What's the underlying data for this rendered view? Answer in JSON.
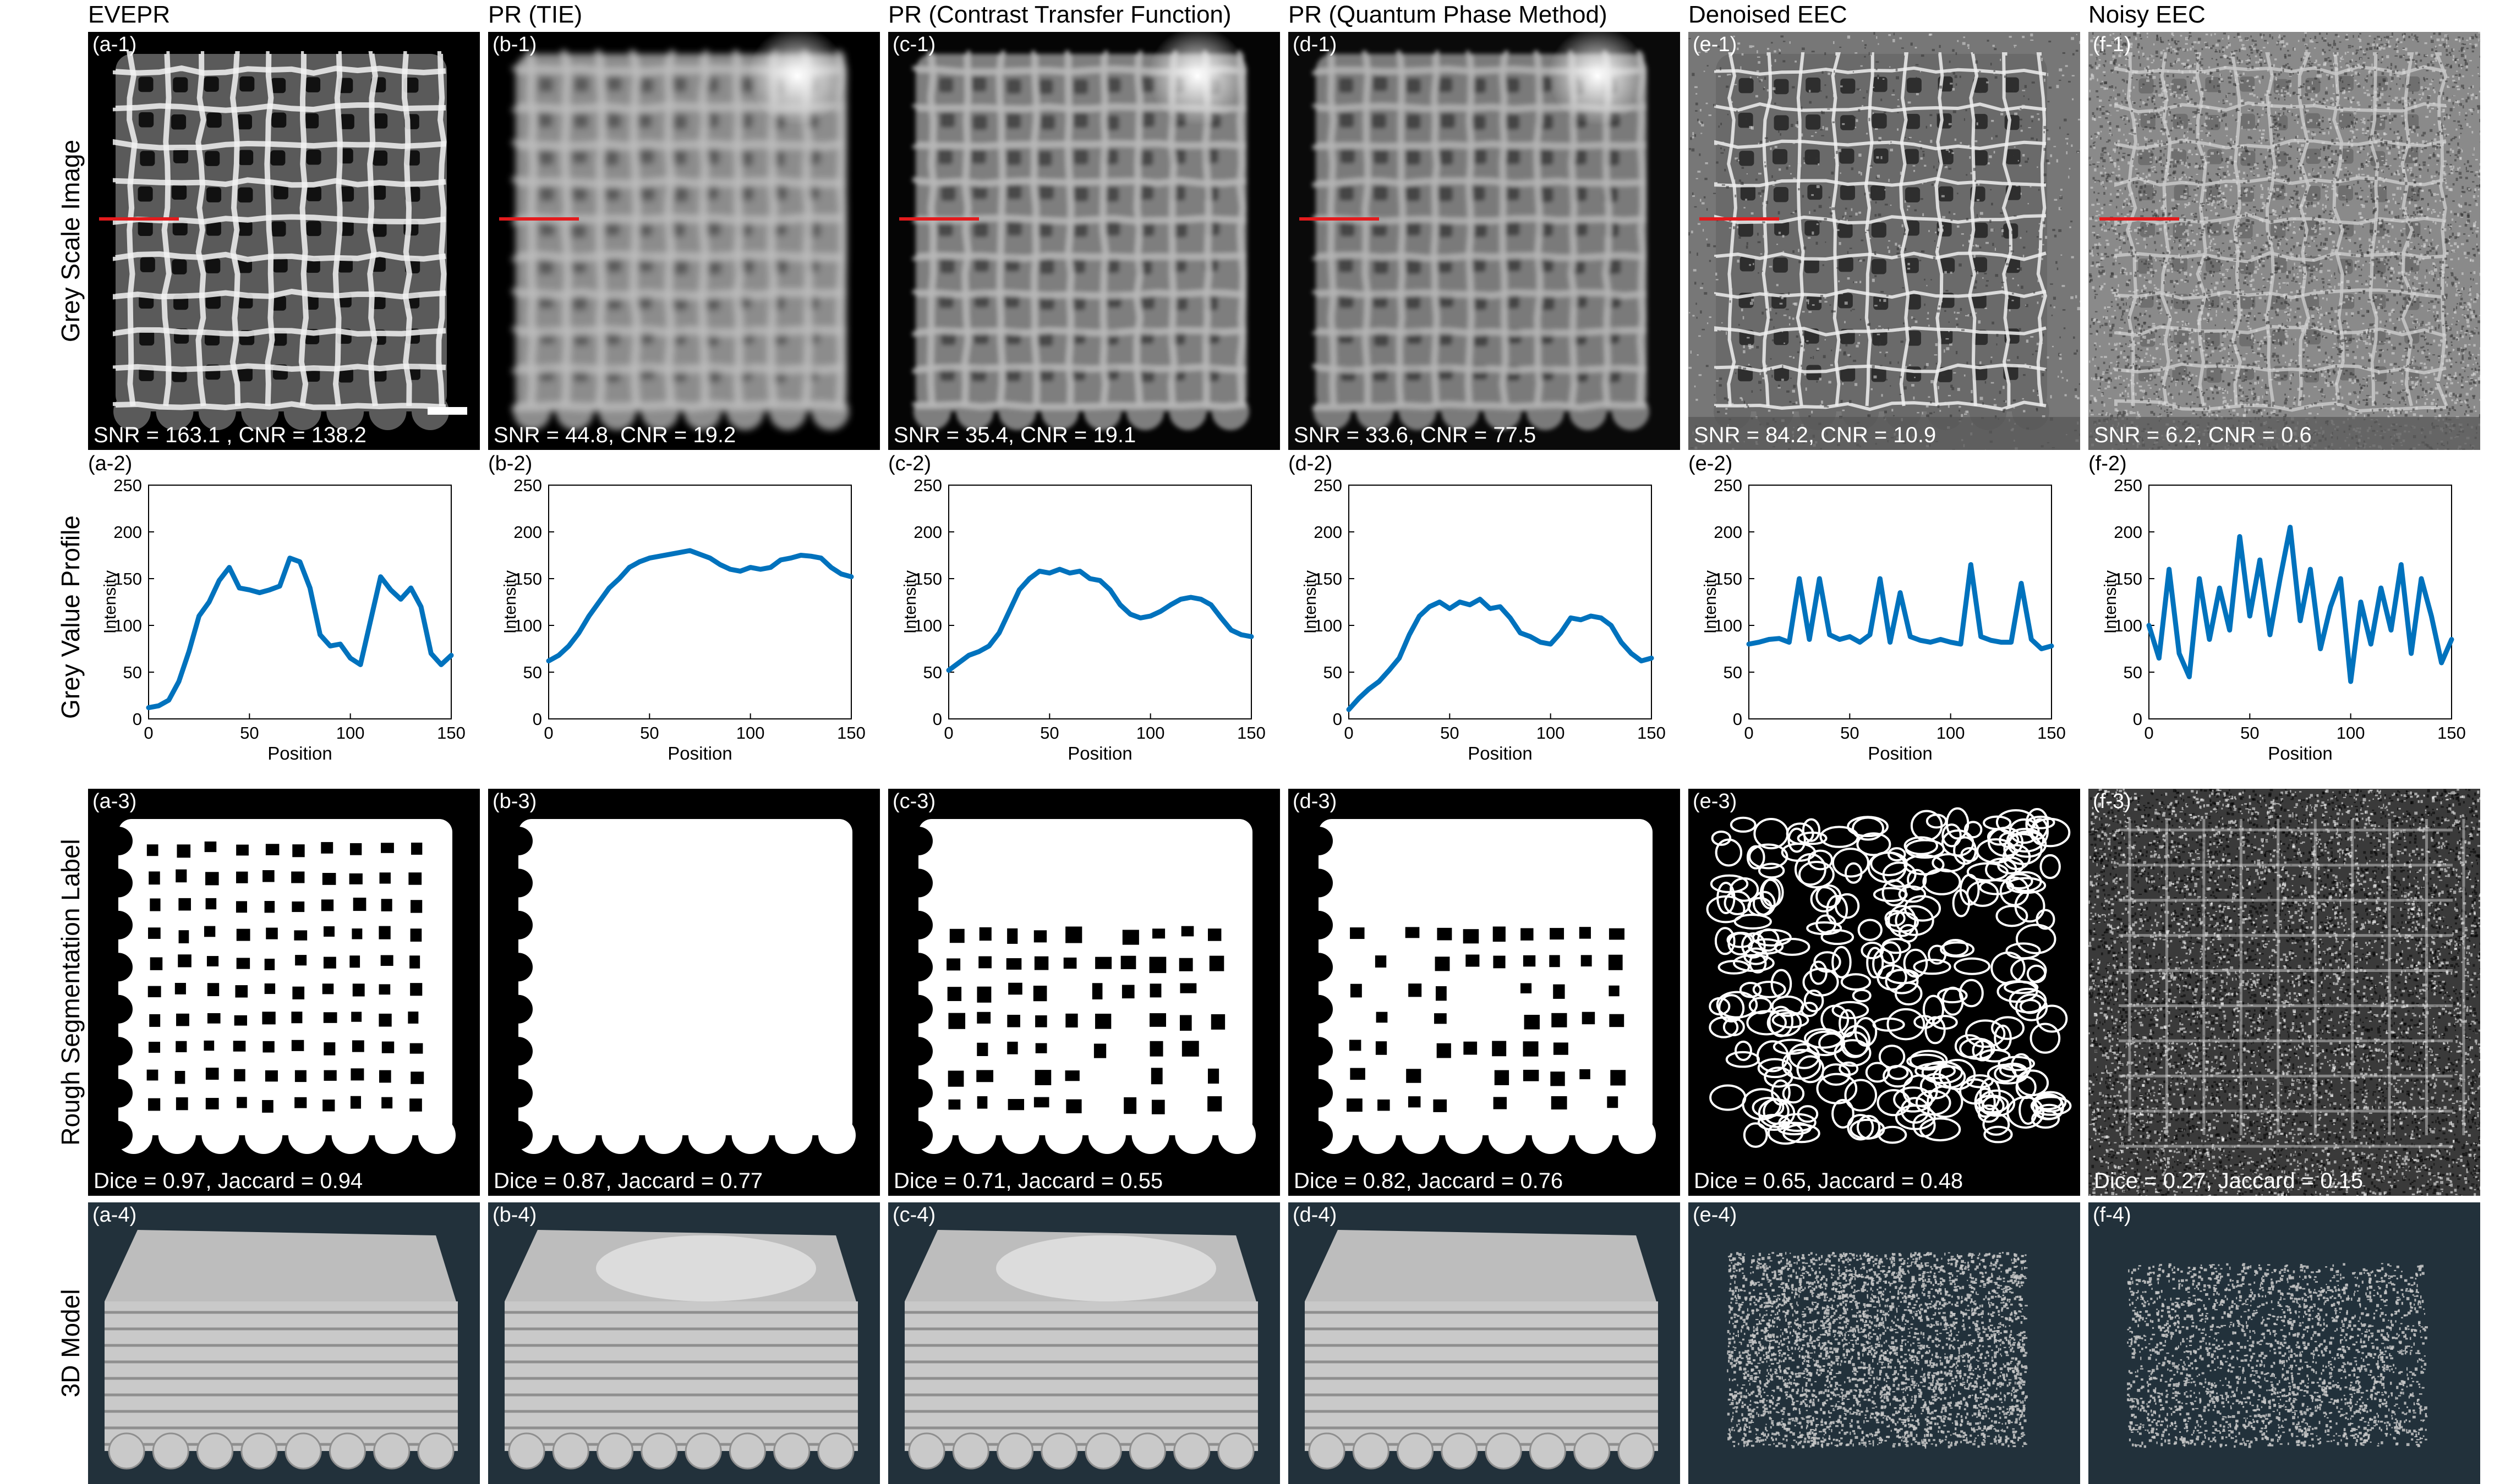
{
  "columns": [
    {
      "title": "EVEPR",
      "labels": [
        "(a-1)",
        "(a-2)",
        "(a-3)",
        "(a-4)"
      ],
      "metrics": "SNR = 163.1 , CNR = 138.2",
      "seg": "Dice = 0.97, Jaccard = 0.94"
    },
    {
      "title": "PR (TIE)",
      "labels": [
        "(b-1)",
        "(b-2)",
        "(b-3)",
        "(b-4)"
      ],
      "metrics": "SNR = 44.8, CNR = 19.2",
      "seg": "Dice = 0.87, Jaccard = 0.77"
    },
    {
      "title": "PR (Contrast Transfer Function)",
      "labels": [
        "(c-1)",
        "(c-2)",
        "(c-3)",
        "(c-4)"
      ],
      "metrics": "SNR = 35.4, CNR =  19.1",
      "seg": "Dice = 0.71, Jaccard = 0.55"
    },
    {
      "title": "PR (Quantum Phase Method)",
      "labels": [
        "(d-1)",
        "(d-2)",
        "(d-3)",
        "(d-4)"
      ],
      "metrics": "SNR = 33.6, CNR = 77.5",
      "seg": "Dice = 0.82, Jaccard = 0.76"
    },
    {
      "title": "Denoised EEC",
      "labels": [
        "(e-1)",
        "(e-2)",
        "(e-3)",
        "(e-4)"
      ],
      "metrics": "SNR = 84.2, CNR = 10.9",
      "seg": "Dice = 0.65, Jaccard = 0.48"
    },
    {
      "title": "Noisy EEC",
      "labels": [
        "(f-1)",
        "(f-2)",
        "(f-3)",
        "(f-4)"
      ],
      "metrics": "SNR = 6.2, CNR = 0.6",
      "seg": "Dice = 0.27, Jaccard = 0.15"
    }
  ],
  "row_labels": [
    "Grey Scale Image",
    "Grey Value Profile",
    "Rough Segmentation Label",
    "3D Model"
  ],
  "colors": {
    "profile_line": "#0072BD",
    "profile_marker": "#e41a1c",
    "model_background": "#22313b",
    "model_surface": "#c9c9c9"
  },
  "chart_data": [
    {
      "type": "line",
      "xlabel": "Position",
      "ylabel": "Intensity",
      "xlim": [
        0,
        150
      ],
      "ylim": [
        0,
        250
      ],
      "xticks": [
        0,
        50,
        100,
        150
      ],
      "yticks": [
        0,
        50,
        100,
        150,
        200,
        250
      ],
      "x": [
        0,
        5,
        10,
        15,
        20,
        25,
        30,
        35,
        40,
        45,
        50,
        55,
        60,
        65,
        70,
        75,
        80,
        85,
        90,
        95,
        100,
        105,
        110,
        115,
        120,
        125,
        130,
        135,
        140,
        145,
        150
      ],
      "series": [
        {
          "values": [
            12,
            14,
            20,
            40,
            72,
            110,
            125,
            148,
            162,
            140,
            138,
            135,
            138,
            142,
            172,
            168,
            140,
            90,
            78,
            80,
            65,
            58,
            105,
            152,
            138,
            128,
            140,
            120,
            70,
            58,
            68
          ]
        }
      ]
    },
    {
      "type": "line",
      "xlabel": "Position",
      "ylabel": "Intensity",
      "xlim": [
        0,
        150
      ],
      "ylim": [
        0,
        250
      ],
      "xticks": [
        0,
        50,
        100,
        150
      ],
      "yticks": [
        0,
        50,
        100,
        150,
        200,
        250
      ],
      "x": [
        0,
        5,
        10,
        15,
        20,
        25,
        30,
        35,
        40,
        45,
        50,
        55,
        60,
        65,
        70,
        75,
        80,
        85,
        90,
        95,
        100,
        105,
        110,
        115,
        120,
        125,
        130,
        135,
        140,
        145,
        150
      ],
      "series": [
        {
          "values": [
            62,
            68,
            78,
            92,
            110,
            125,
            140,
            150,
            162,
            168,
            172,
            174,
            176,
            178,
            180,
            176,
            172,
            165,
            160,
            158,
            162,
            160,
            162,
            170,
            172,
            175,
            174,
            172,
            162,
            155,
            152
          ]
        }
      ]
    },
    {
      "type": "line",
      "xlabel": "Position",
      "ylabel": "Intensity",
      "xlim": [
        0,
        150
      ],
      "ylim": [
        0,
        250
      ],
      "xticks": [
        0,
        50,
        100,
        150
      ],
      "yticks": [
        0,
        50,
        100,
        150,
        200,
        250
      ],
      "x": [
        0,
        5,
        10,
        15,
        20,
        25,
        30,
        35,
        40,
        45,
        50,
        55,
        60,
        65,
        70,
        75,
        80,
        85,
        90,
        95,
        100,
        105,
        110,
        115,
        120,
        125,
        130,
        135,
        140,
        145,
        150
      ],
      "series": [
        {
          "values": [
            52,
            60,
            68,
            72,
            78,
            92,
            115,
            138,
            150,
            158,
            156,
            160,
            156,
            158,
            150,
            148,
            138,
            122,
            112,
            108,
            110,
            115,
            122,
            128,
            130,
            128,
            122,
            108,
            95,
            90,
            88
          ]
        }
      ]
    },
    {
      "type": "line",
      "xlabel": "Position",
      "ylabel": "Intensity",
      "xlim": [
        0,
        150
      ],
      "ylim": [
        0,
        250
      ],
      "xticks": [
        0,
        50,
        100,
        150
      ],
      "yticks": [
        0,
        50,
        100,
        150,
        200,
        250
      ],
      "x": [
        0,
        5,
        10,
        15,
        20,
        25,
        30,
        35,
        40,
        45,
        50,
        55,
        60,
        65,
        70,
        75,
        80,
        85,
        90,
        95,
        100,
        105,
        110,
        115,
        120,
        125,
        130,
        135,
        140,
        145,
        150
      ],
      "series": [
        {
          "values": [
            10,
            22,
            32,
            40,
            52,
            65,
            90,
            110,
            120,
            125,
            118,
            125,
            122,
            128,
            118,
            120,
            108,
            92,
            88,
            82,
            80,
            92,
            108,
            106,
            110,
            108,
            100,
            82,
            70,
            62,
            65
          ]
        }
      ]
    },
    {
      "type": "line",
      "xlabel": "Position",
      "ylabel": "Intensity",
      "xlim": [
        0,
        150
      ],
      "ylim": [
        0,
        250
      ],
      "xticks": [
        0,
        50,
        100,
        150
      ],
      "yticks": [
        0,
        50,
        100,
        150,
        200,
        250
      ],
      "x": [
        0,
        5,
        10,
        15,
        20,
        25,
        30,
        35,
        40,
        45,
        50,
        55,
        60,
        65,
        70,
        75,
        80,
        85,
        90,
        95,
        100,
        105,
        110,
        115,
        120,
        125,
        130,
        135,
        140,
        145,
        150
      ],
      "series": [
        {
          "values": [
            80,
            82,
            85,
            86,
            82,
            150,
            85,
            150,
            90,
            85,
            88,
            82,
            90,
            150,
            82,
            135,
            88,
            84,
            82,
            85,
            82,
            80,
            165,
            88,
            84,
            82,
            82,
            145,
            85,
            75,
            78
          ]
        }
      ]
    },
    {
      "type": "line",
      "xlabel": "Position",
      "ylabel": "Intensity",
      "xlim": [
        0,
        150
      ],
      "ylim": [
        0,
        250
      ],
      "xticks": [
        0,
        50,
        100,
        150
      ],
      "yticks": [
        0,
        50,
        100,
        150,
        200,
        250
      ],
      "x": [
        0,
        5,
        10,
        15,
        20,
        25,
        30,
        35,
        40,
        45,
        50,
        55,
        60,
        65,
        70,
        75,
        80,
        85,
        90,
        95,
        100,
        105,
        110,
        115,
        120,
        125,
        130,
        135,
        140,
        145,
        150
      ],
      "series": [
        {
          "values": [
            100,
            65,
            160,
            70,
            45,
            150,
            85,
            140,
            95,
            195,
            110,
            170,
            90,
            150,
            205,
            105,
            160,
            75,
            120,
            150,
            40,
            125,
            80,
            140,
            95,
            165,
            70,
            150,
            110,
            60,
            85
          ]
        }
      ]
    }
  ]
}
